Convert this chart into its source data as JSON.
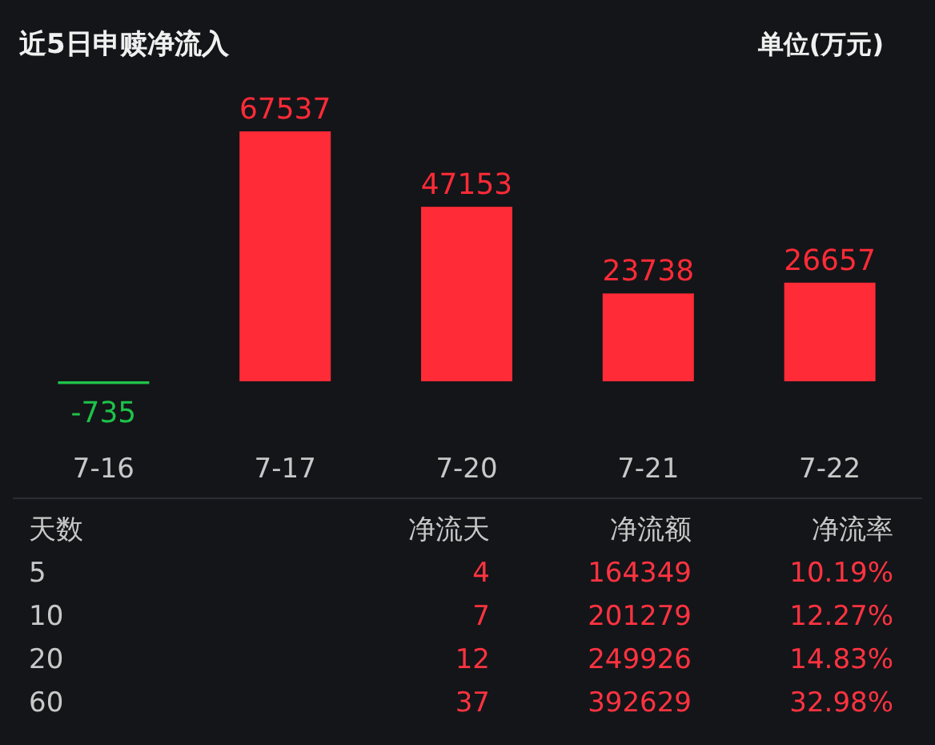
{
  "chart_data": {
    "type": "bar",
    "title": "近5日申赎净流入",
    "categories": [
      "7-16",
      "7-17",
      "7-20",
      "7-21",
      "7-22"
    ],
    "values": [
      -735,
      67537,
      47153,
      23738,
      26657
    ],
    "colors": [
      "#1fc24a",
      "#ff2b37",
      "#ff2b37",
      "#ff2b37",
      "#ff2b37"
    ],
    "data_labels": true,
    "annotations": [
      "单位(万元)",
      "天数",
      "净流天",
      "净流额",
      "净流率",
      "5",
      "4",
      "164349",
      "10.19%",
      "10",
      "7",
      "201279",
      "12.27%",
      "20",
      "12",
      "249926",
      "14.83%",
      "60",
      "37",
      "392629",
      "32.98%"
    ]
  }
}
